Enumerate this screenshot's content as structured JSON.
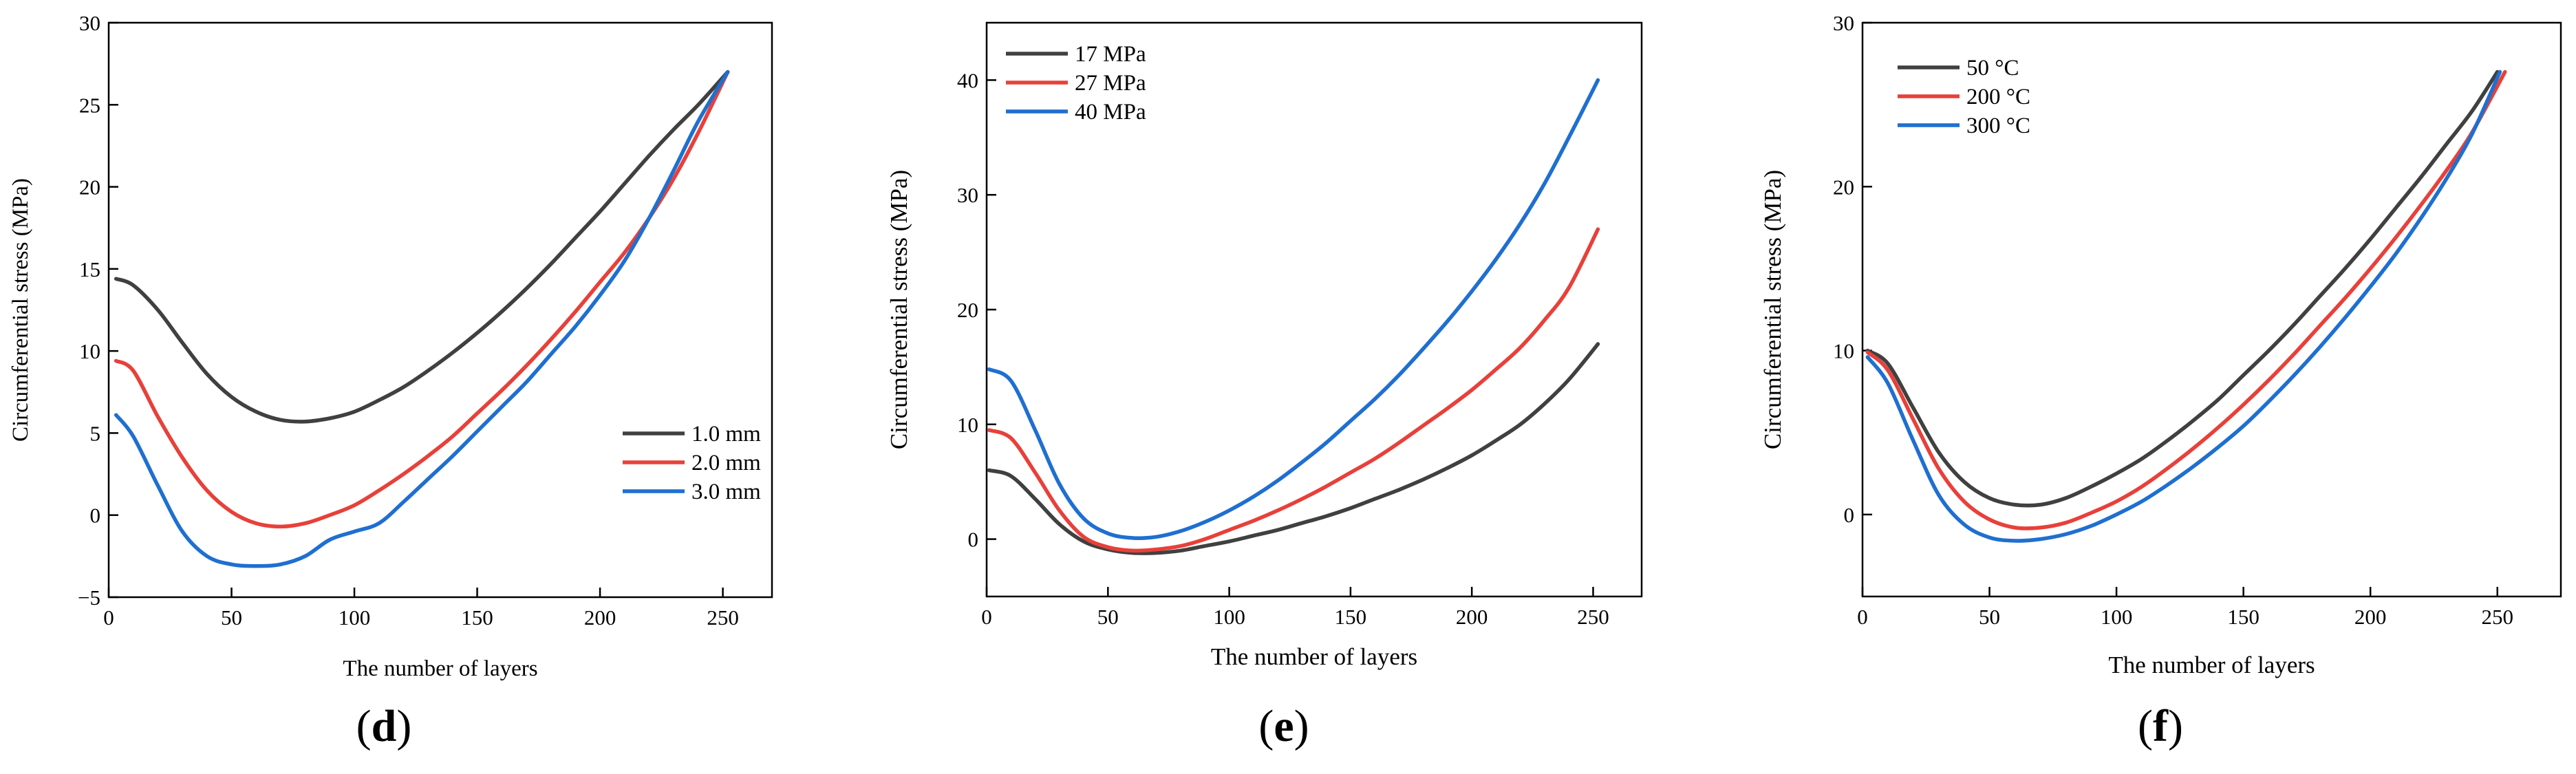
{
  "chart_data": [
    {
      "type": "line",
      "panel": "d",
      "xlabel": "The number of layers",
      "ylabel": "Circumferential stress (MPa)",
      "xlim": [
        0,
        270
      ],
      "ylim": [
        -5,
        30
      ],
      "xticks": [
        0,
        50,
        100,
        150,
        200,
        250
      ],
      "yticks": [
        -5,
        0,
        5,
        10,
        15,
        20,
        25,
        30
      ],
      "xtick_labels": [
        "0",
        "50",
        "100",
        "150",
        "200",
        "250"
      ],
      "ytick_labels": [
        "−5",
        "0",
        "5",
        "10",
        "15",
        "20",
        "25",
        "30"
      ],
      "legend_position": "center-right",
      "series": [
        {
          "name": "1.0 mm",
          "color": "#404040",
          "x": [
            3,
            10,
            20,
            30,
            40,
            50,
            60,
            70,
            80,
            90,
            100,
            110,
            120,
            130,
            140,
            150,
            160,
            170,
            180,
            190,
            200,
            210,
            220,
            230,
            240,
            252
          ],
          "y": [
            14.4,
            14.0,
            12.5,
            10.5,
            8.6,
            7.2,
            6.3,
            5.8,
            5.7,
            5.9,
            6.3,
            7.0,
            7.8,
            8.8,
            9.9,
            11.1,
            12.4,
            13.8,
            15.3,
            16.9,
            18.5,
            20.2,
            21.9,
            23.5,
            25.0,
            27.0
          ]
        },
        {
          "name": "2.0 mm",
          "color": "#e8403a",
          "x": [
            3,
            10,
            20,
            30,
            40,
            50,
            60,
            70,
            80,
            90,
            100,
            110,
            120,
            130,
            140,
            150,
            160,
            170,
            180,
            190,
            200,
            210,
            220,
            230,
            240,
            252
          ],
          "y": [
            9.4,
            8.8,
            6.0,
            3.5,
            1.5,
            0.2,
            -0.5,
            -0.7,
            -0.5,
            0.0,
            0.6,
            1.5,
            2.5,
            3.6,
            4.8,
            6.2,
            7.6,
            9.1,
            10.7,
            12.4,
            14.2,
            16.0,
            18.1,
            20.5,
            23.3,
            27.0
          ]
        },
        {
          "name": "3.0 mm",
          "color": "#1f6fd0",
          "x": [
            3,
            10,
            20,
            30,
            40,
            50,
            60,
            70,
            80,
            90,
            100,
            110,
            120,
            130,
            140,
            150,
            160,
            170,
            180,
            190,
            200,
            210,
            220,
            230,
            240,
            252
          ],
          "y": [
            6.1,
            4.8,
            1.8,
            -1.0,
            -2.5,
            -3.0,
            -3.1,
            -3.0,
            -2.5,
            -1.5,
            -1.0,
            -0.5,
            0.8,
            2.2,
            3.6,
            5.1,
            6.6,
            8.1,
            9.8,
            11.5,
            13.4,
            15.5,
            18.1,
            21.0,
            24.0,
            27.0
          ]
        }
      ]
    },
    {
      "type": "line",
      "panel": "e",
      "xlabel": "The number of layers",
      "ylabel": "Circumferential stress (MPa)",
      "xlim": [
        0,
        270
      ],
      "ylim": [
        -5,
        45
      ],
      "xticks": [
        0,
        50,
        100,
        150,
        200,
        250
      ],
      "yticks": [
        0,
        10,
        20,
        30,
        40
      ],
      "xtick_labels": [
        "0",
        "50",
        "100",
        "150",
        "200",
        "250"
      ],
      "ytick_labels": [
        "0",
        "10",
        "20",
        "30",
        "40"
      ],
      "legend_position": "top-left",
      "series": [
        {
          "name": "17 MPa",
          "color": "#404040",
          "x": [
            1,
            10,
            20,
            30,
            40,
            50,
            60,
            70,
            80,
            90,
            100,
            110,
            120,
            130,
            140,
            150,
            160,
            170,
            180,
            190,
            200,
            210,
            220,
            230,
            240,
            252
          ],
          "y": [
            6.0,
            5.5,
            3.5,
            1.3,
            -0.2,
            -0.9,
            -1.2,
            -1.2,
            -1.0,
            -0.6,
            -0.2,
            0.3,
            0.8,
            1.4,
            2.0,
            2.7,
            3.5,
            4.3,
            5.2,
            6.2,
            7.3,
            8.6,
            10.0,
            11.8,
            13.9,
            17.0
          ]
        },
        {
          "name": "27 MPa",
          "color": "#e8403a",
          "x": [
            1,
            10,
            20,
            30,
            40,
            50,
            60,
            70,
            80,
            90,
            100,
            110,
            120,
            130,
            140,
            150,
            160,
            170,
            180,
            190,
            200,
            210,
            220,
            230,
            240,
            252
          ],
          "y": [
            9.5,
            8.8,
            5.8,
            2.5,
            0.2,
            -0.7,
            -1.0,
            -0.9,
            -0.6,
            0.0,
            0.8,
            1.6,
            2.5,
            3.5,
            4.6,
            5.8,
            7.0,
            8.4,
            9.9,
            11.4,
            13.0,
            14.8,
            16.7,
            19.1,
            21.9,
            27.0
          ]
        },
        {
          "name": "40 MPa",
          "color": "#1f6fd0",
          "x": [
            1,
            10,
            20,
            30,
            40,
            50,
            60,
            70,
            80,
            90,
            100,
            110,
            120,
            130,
            140,
            150,
            160,
            170,
            180,
            190,
            200,
            210,
            220,
            230,
            240,
            252
          ],
          "y": [
            14.8,
            13.8,
            9.5,
            4.8,
            1.8,
            0.5,
            0.1,
            0.2,
            0.7,
            1.5,
            2.5,
            3.7,
            5.1,
            6.7,
            8.4,
            10.3,
            12.2,
            14.3,
            16.6,
            19.0,
            21.6,
            24.4,
            27.5,
            31.0,
            35.0,
            40.0
          ]
        }
      ]
    },
    {
      "type": "line",
      "panel": "f",
      "xlabel": "The number of layers",
      "ylabel": "Circumferential stress (MPa)",
      "xlim": [
        0,
        275
      ],
      "ylim": [
        -5,
        30
      ],
      "xticks": [
        0,
        50,
        100,
        150,
        200,
        250
      ],
      "yticks": [
        0,
        10,
        20,
        30
      ],
      "xtick_labels": [
        "0",
        "50",
        "100",
        "150",
        "200",
        "250"
      ],
      "ytick_labels": [
        "0",
        "10",
        "20",
        "30"
      ],
      "legend_position": "top-left",
      "series": [
        {
          "name": "50 °C",
          "color": "#404040",
          "x": [
            2,
            10,
            20,
            30,
            40,
            50,
            60,
            70,
            80,
            90,
            100,
            110,
            120,
            130,
            140,
            150,
            160,
            170,
            180,
            190,
            200,
            210,
            220,
            230,
            240,
            250
          ],
          "y": [
            10.0,
            9.2,
            6.5,
            3.8,
            2.0,
            1.0,
            0.6,
            0.6,
            1.0,
            1.7,
            2.5,
            3.4,
            4.5,
            5.7,
            7.0,
            8.5,
            10.0,
            11.6,
            13.3,
            15.0,
            16.8,
            18.7,
            20.6,
            22.6,
            24.6,
            27.0
          ]
        },
        {
          "name": "200 °C",
          "color": "#e8403a",
          "x": [
            2,
            10,
            20,
            30,
            40,
            50,
            60,
            70,
            80,
            90,
            100,
            110,
            120,
            130,
            140,
            150,
            160,
            170,
            180,
            190,
            200,
            210,
            220,
            230,
            240,
            253
          ],
          "y": [
            9.9,
            8.8,
            5.8,
            2.8,
            0.8,
            -0.3,
            -0.8,
            -0.8,
            -0.5,
            0.1,
            0.8,
            1.7,
            2.8,
            4.0,
            5.3,
            6.7,
            8.2,
            9.8,
            11.5,
            13.2,
            15.0,
            16.9,
            18.9,
            21.0,
            23.3,
            27.0
          ]
        },
        {
          "name": "300 °C",
          "color": "#1f6fd0",
          "x": [
            2,
            10,
            20,
            30,
            40,
            50,
            60,
            70,
            80,
            90,
            100,
            110,
            120,
            130,
            140,
            150,
            160,
            170,
            180,
            190,
            200,
            210,
            220,
            230,
            240,
            251
          ],
          "y": [
            9.6,
            8.0,
            4.5,
            1.2,
            -0.6,
            -1.4,
            -1.6,
            -1.5,
            -1.2,
            -0.7,
            0.0,
            0.8,
            1.8,
            2.9,
            4.1,
            5.4,
            6.9,
            8.5,
            10.2,
            12.0,
            13.9,
            15.9,
            18.1,
            20.5,
            23.2,
            27.0
          ]
        }
      ]
    }
  ],
  "panel_labels": [
    "d",
    "e",
    "f"
  ]
}
